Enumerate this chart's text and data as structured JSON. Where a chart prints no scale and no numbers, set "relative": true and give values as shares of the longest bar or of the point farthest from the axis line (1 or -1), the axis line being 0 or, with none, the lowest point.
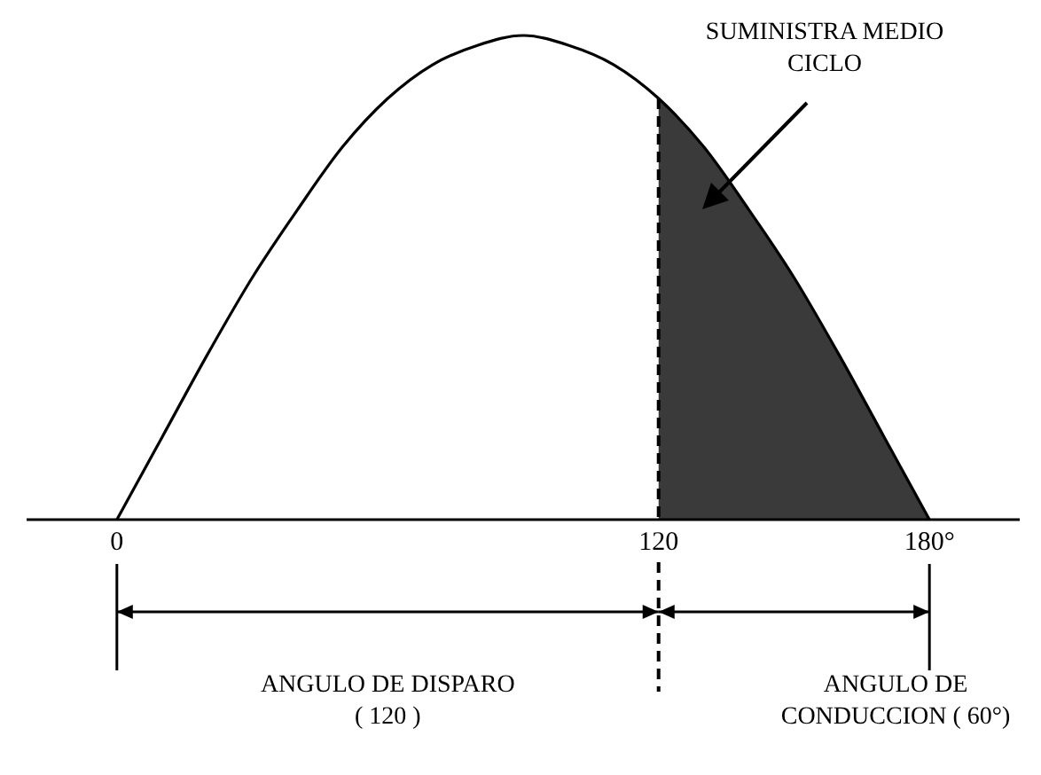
{
  "chart_data": {
    "type": "line",
    "relative": true,
    "xlim": [
      -20,
      200
    ],
    "xticks": [
      0,
      120,
      {
        "value": 180,
        "label": "180°"
      }
    ],
    "series": [
      {
        "color": "#000000",
        "x": [
          0,
          10,
          20,
          30,
          40,
          50,
          60,
          70,
          80,
          90,
          100,
          110,
          120,
          130,
          140,
          150,
          160,
          170,
          180
        ],
        "values": [
          0,
          0.17,
          0.34,
          0.5,
          0.64,
          0.77,
          0.87,
          0.94,
          0.98,
          1,
          0.98,
          0.94,
          0.87,
          0.77,
          0.64,
          0.5,
          0.34,
          0.17,
          0
        ]
      },
      {
        "type": "area",
        "color": "#3a3a3a",
        "x": [
          120,
          130,
          140,
          150,
          160,
          170,
          180
        ],
        "values": [
          0.87,
          0.77,
          0.64,
          0.5,
          0.34,
          0.17,
          0
        ]
      }
    ],
    "ref_lines": [
      {
        "axis": "x",
        "value": 120,
        "line_style": "dashed",
        "color": "#000000"
      }
    ],
    "annotations": [
      "SUMINISTRA MEDIO CICLO",
      "ANGULO DE DISPARO ( 120 )",
      "ANGULO DE CONDUCCION ( 60°)"
    ]
  }
}
